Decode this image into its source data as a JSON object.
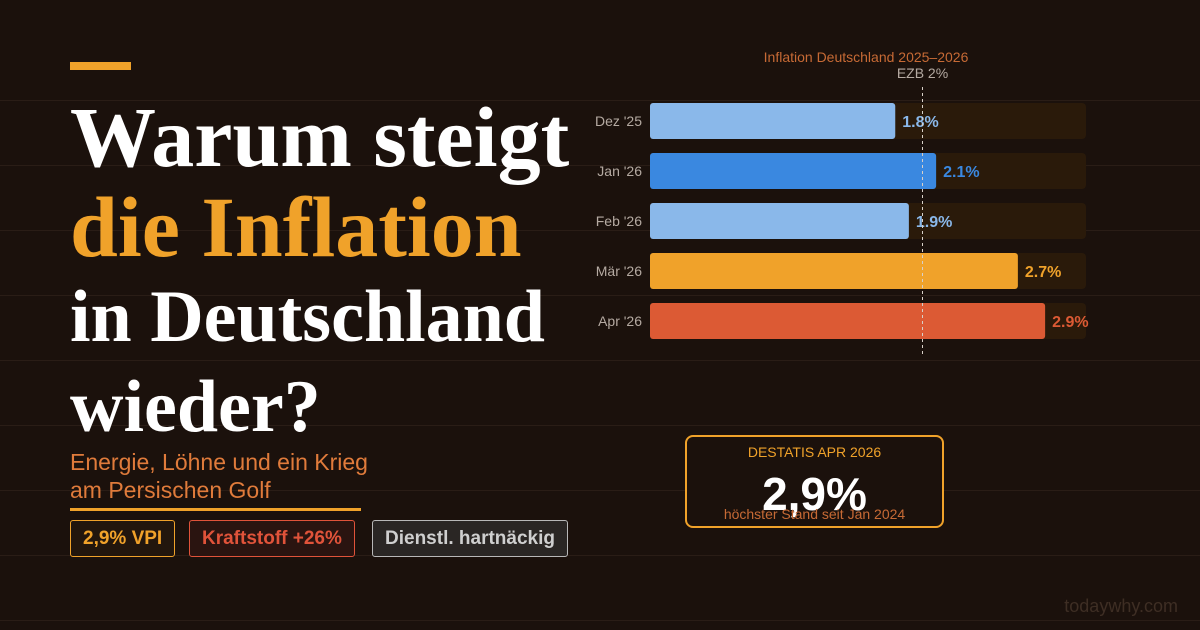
{
  "headline": {
    "line1": "Warum steigt",
    "line2": "die Inflation",
    "line3": "in Deutschland",
    "line4": "wieder?"
  },
  "subtitle": {
    "line1": "Energie, Löhne und ein Krieg",
    "line2": "am Persischen Golf"
  },
  "tags": [
    "2,9% VPI",
    "Kraftstoff +26%",
    "Dienstl. hartnäckig"
  ],
  "stat": {
    "label": "DESTATIS APR 2026",
    "value": "2,9%",
    "note": "höchster Stand seit Jan 2024"
  },
  "watermark": "todaywhy.com",
  "colors": {
    "light_blue": "#8ab8ea",
    "blue": "#3a88e0",
    "orange": "#f0a22a",
    "red": "#dc5a34",
    "track": "#2a1a0a"
  },
  "chart_data": {
    "type": "bar",
    "orientation": "horizontal",
    "title": "Inflation Deutschland 2025–2026",
    "categories": [
      "Dez '25",
      "Jan '26",
      "Feb '26",
      "Mär '26",
      "Apr '26"
    ],
    "values": [
      1.8,
      2.1,
      1.9,
      2.7,
      2.9
    ],
    "value_labels": [
      "1.8%",
      "2.1%",
      "1.9%",
      "2.7%",
      "2.9%"
    ],
    "bar_colors": [
      "#8ab8ea",
      "#3a88e0",
      "#8ab8ea",
      "#f0a22a",
      "#dc5a34"
    ],
    "xlim": [
      0,
      3.2
    ],
    "reference_line": {
      "value": 2.0,
      "label": "EZB 2%"
    },
    "grid": false
  }
}
